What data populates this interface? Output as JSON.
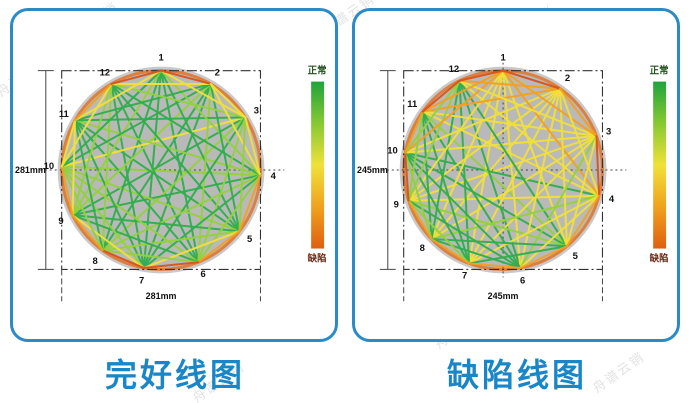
{
  "watermark": {
    "text": "舟谱云销"
  },
  "palette": {
    "g": "#2fae4d",
    "lg": "#93d23c",
    "y": "#f2e138",
    "o": "#f5a01e",
    "r": "#d8531c",
    "rim": "#dc7f3f",
    "disc": "#b9b9b9",
    "halo": "#c9c9c9",
    "caption_blue": "#1886c7",
    "border_blue": "#2a8bc9",
    "legend_stops": [
      "#1fa33c",
      "#86c932",
      "#f0e13a",
      "#f0a21e",
      "#e05f10"
    ],
    "legend_top_color": "#24531f",
    "legend_bottom_color": "#6b2a16"
  },
  "panels": [
    {
      "id": "intact",
      "caption": "完好线图",
      "legend": {
        "top": "正常",
        "bottom": "缺陷"
      },
      "dim_height": "281mm",
      "dim_width": "281mm",
      "crosshair": [
        "h"
      ],
      "nodes": [
        {
          "label": "1",
          "angle": 0
        },
        {
          "label": "2",
          "angle": 30
        },
        {
          "label": "3",
          "angle": 58
        },
        {
          "label": "4",
          "angle": 93
        },
        {
          "label": "5",
          "angle": 128
        },
        {
          "label": "6",
          "angle": 158
        },
        {
          "label": "7",
          "angle": 190
        },
        {
          "label": "8",
          "angle": 216
        },
        {
          "label": "9",
          "angle": 243
        },
        {
          "label": "10",
          "angle": 272
        },
        {
          "label": "11",
          "angle": 300
        },
        {
          "label": "12",
          "angle": 330
        }
      ],
      "edges": [
        [
          1,
          7,
          "g"
        ],
        [
          2,
          8,
          "g"
        ],
        [
          3,
          9,
          "g"
        ],
        [
          4,
          10,
          "lg"
        ],
        [
          5,
          11,
          "g"
        ],
        [
          6,
          12,
          "g"
        ],
        [
          1,
          6,
          "g"
        ],
        [
          2,
          7,
          "g"
        ],
        [
          3,
          8,
          "lg"
        ],
        [
          4,
          9,
          "g"
        ],
        [
          5,
          10,
          "lg"
        ],
        [
          6,
          11,
          "g"
        ],
        [
          7,
          12,
          "g"
        ],
        [
          1,
          8,
          "g"
        ],
        [
          2,
          9,
          "lg"
        ],
        [
          3,
          10,
          "y"
        ],
        [
          4,
          11,
          "lg"
        ],
        [
          5,
          12,
          "g"
        ],
        [
          1,
          5,
          "g"
        ],
        [
          2,
          6,
          "lg"
        ],
        [
          3,
          7,
          "g"
        ],
        [
          4,
          8,
          "lg"
        ],
        [
          5,
          9,
          "g"
        ],
        [
          6,
          10,
          "lg"
        ],
        [
          7,
          11,
          "g"
        ],
        [
          8,
          12,
          "lg"
        ],
        [
          1,
          9,
          "lg"
        ],
        [
          2,
          10,
          "g"
        ],
        [
          3,
          11,
          "g"
        ],
        [
          4,
          12,
          "g"
        ],
        [
          1,
          4,
          "lg"
        ],
        [
          2,
          5,
          "g"
        ],
        [
          3,
          6,
          "lg"
        ],
        [
          4,
          7,
          "g"
        ],
        [
          5,
          8,
          "lg"
        ],
        [
          6,
          9,
          "g"
        ],
        [
          7,
          10,
          "lg"
        ],
        [
          8,
          11,
          "g"
        ],
        [
          9,
          12,
          "lg"
        ],
        [
          1,
          10,
          "g"
        ],
        [
          2,
          11,
          "g"
        ],
        [
          3,
          12,
          "lg"
        ],
        [
          1,
          3,
          "y"
        ],
        [
          2,
          4,
          "y"
        ],
        [
          3,
          5,
          "lg"
        ],
        [
          4,
          6,
          "lg"
        ],
        [
          5,
          7,
          "y"
        ],
        [
          6,
          8,
          "lg"
        ],
        [
          7,
          9,
          "y"
        ],
        [
          8,
          10,
          "lg"
        ],
        [
          9,
          11,
          "y"
        ],
        [
          10,
          12,
          "y"
        ],
        [
          1,
          11,
          "y"
        ],
        [
          2,
          12,
          "y"
        ],
        [
          1,
          2,
          "r"
        ],
        [
          2,
          3,
          "y"
        ],
        [
          3,
          4,
          "y"
        ],
        [
          4,
          5,
          "o"
        ],
        [
          5,
          6,
          "o"
        ],
        [
          6,
          7,
          "r"
        ],
        [
          7,
          8,
          "r"
        ],
        [
          8,
          9,
          "o"
        ],
        [
          9,
          10,
          "o"
        ],
        [
          10,
          11,
          "y"
        ],
        [
          11,
          12,
          "o"
        ],
        [
          1,
          12,
          "r"
        ]
      ]
    },
    {
      "id": "defect",
      "caption": "缺陷线图",
      "legend": {
        "top": "正常",
        "bottom": "缺陷"
      },
      "dim_height": "245mm",
      "dim_width": "245mm",
      "crosshair": [
        "h",
        "v"
      ],
      "nodes": [
        {
          "label": "1",
          "angle": 0
        },
        {
          "label": "2",
          "angle": 35
        },
        {
          "label": "3",
          "angle": 70
        },
        {
          "label": "4",
          "angle": 105
        },
        {
          "label": "5",
          "angle": 140
        },
        {
          "label": "6",
          "angle": 170
        },
        {
          "label": "7",
          "angle": 200
        },
        {
          "label": "8",
          "angle": 226
        },
        {
          "label": "9",
          "angle": 252
        },
        {
          "label": "10",
          "angle": 280
        },
        {
          "label": "11",
          "angle": 306
        },
        {
          "label": "12",
          "angle": 334
        }
      ],
      "edges": [
        [
          1,
          7,
          "y"
        ],
        [
          2,
          8,
          "y"
        ],
        [
          3,
          9,
          "y"
        ],
        [
          4,
          10,
          "g"
        ],
        [
          5,
          11,
          "lg"
        ],
        [
          6,
          12,
          "g"
        ],
        [
          1,
          6,
          "y"
        ],
        [
          2,
          7,
          "y"
        ],
        [
          3,
          8,
          "y"
        ],
        [
          4,
          9,
          "y"
        ],
        [
          5,
          10,
          "g"
        ],
        [
          6,
          11,
          "g"
        ],
        [
          7,
          12,
          "g"
        ],
        [
          1,
          8,
          "y"
        ],
        [
          2,
          9,
          "y"
        ],
        [
          3,
          10,
          "y"
        ],
        [
          4,
          11,
          "y"
        ],
        [
          5,
          12,
          "g"
        ],
        [
          1,
          5,
          "y"
        ],
        [
          2,
          6,
          "y"
        ],
        [
          3,
          7,
          "y"
        ],
        [
          4,
          8,
          "lg"
        ],
        [
          5,
          9,
          "lg"
        ],
        [
          6,
          10,
          "g"
        ],
        [
          7,
          11,
          "g"
        ],
        [
          8,
          12,
          "g"
        ],
        [
          1,
          9,
          "y"
        ],
        [
          2,
          10,
          "y"
        ],
        [
          3,
          11,
          "y"
        ],
        [
          4,
          12,
          "y"
        ],
        [
          1,
          4,
          "o"
        ],
        [
          2,
          5,
          "y"
        ],
        [
          3,
          6,
          "lg"
        ],
        [
          4,
          7,
          "y"
        ],
        [
          5,
          8,
          "g"
        ],
        [
          6,
          9,
          "g"
        ],
        [
          7,
          10,
          "g"
        ],
        [
          8,
          11,
          "g"
        ],
        [
          9,
          12,
          "lg"
        ],
        [
          1,
          10,
          "o"
        ],
        [
          2,
          11,
          "o"
        ],
        [
          3,
          12,
          "y"
        ],
        [
          1,
          3,
          "o"
        ],
        [
          2,
          4,
          "y"
        ],
        [
          3,
          5,
          "y"
        ],
        [
          4,
          6,
          "y"
        ],
        [
          5,
          7,
          "g"
        ],
        [
          6,
          8,
          "g"
        ],
        [
          7,
          9,
          "lg"
        ],
        [
          8,
          10,
          "lg"
        ],
        [
          9,
          11,
          "lg"
        ],
        [
          10,
          12,
          "lg"
        ],
        [
          1,
          11,
          "o"
        ],
        [
          2,
          12,
          "o"
        ],
        [
          1,
          2,
          "r"
        ],
        [
          2,
          3,
          "o"
        ],
        [
          3,
          4,
          "r"
        ],
        [
          4,
          5,
          "o"
        ],
        [
          5,
          6,
          "o"
        ],
        [
          6,
          7,
          "o"
        ],
        [
          7,
          8,
          "o"
        ],
        [
          8,
          9,
          "o"
        ],
        [
          9,
          10,
          "r"
        ],
        [
          10,
          11,
          "o"
        ],
        [
          11,
          12,
          "r"
        ],
        [
          1,
          12,
          "r"
        ]
      ]
    }
  ]
}
